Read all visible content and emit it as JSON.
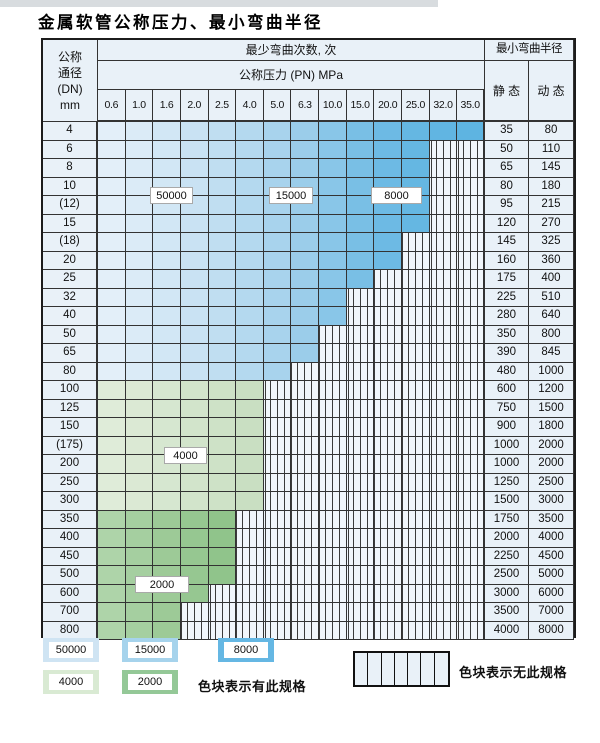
{
  "title": "金属软管公称压力、最小弯曲半径",
  "header": {
    "dn_lines": [
      "公称",
      "通径",
      "(DN)",
      "mm"
    ],
    "min_bend_cycles": "最少弯曲次数, 次",
    "nominal_pressure": "公称压力 (PN) MPa",
    "min_bend_radius": "最小弯曲半径",
    "static_label": "静 态",
    "dynamic_label": "动 态",
    "pressures": [
      "0.6",
      "1.0",
      "1.6",
      "2.0",
      "2.5",
      "4.0",
      "5.0",
      "6.3",
      "10.0",
      "15.0",
      "20.0",
      "25.0",
      "32.0",
      "35.0"
    ]
  },
  "cycle_labels": {
    "c50000": "50000",
    "c15000": "15000",
    "c8000": "8000",
    "c4000": "4000",
    "c2000": "2000"
  },
  "rows": [
    {
      "dn": "4",
      "spec": "blue",
      "colored": 14,
      "static": "35",
      "dynamic": "80"
    },
    {
      "dn": "6",
      "spec": "blue",
      "colored": 12,
      "static": "50",
      "dynamic": "110"
    },
    {
      "dn": "8",
      "spec": "blue",
      "colored": 12,
      "static": "65",
      "dynamic": "145"
    },
    {
      "dn": "10",
      "spec": "blue",
      "colored": 12,
      "static": "80",
      "dynamic": "180"
    },
    {
      "dn": "(12)",
      "spec": "blue",
      "colored": 12,
      "static": "95",
      "dynamic": "215"
    },
    {
      "dn": "15",
      "spec": "blue",
      "colored": 12,
      "static": "120",
      "dynamic": "270"
    },
    {
      "dn": "(18)",
      "spec": "blue",
      "colored": 11,
      "static": "145",
      "dynamic": "325"
    },
    {
      "dn": "20",
      "spec": "blue",
      "colored": 11,
      "static": "160",
      "dynamic": "360"
    },
    {
      "dn": "25",
      "spec": "blue",
      "colored": 10,
      "static": "175",
      "dynamic": "400"
    },
    {
      "dn": "32",
      "spec": "blue",
      "colored": 9,
      "static": "225",
      "dynamic": "510"
    },
    {
      "dn": "40",
      "spec": "blue",
      "colored": 9,
      "static": "280",
      "dynamic": "640"
    },
    {
      "dn": "50",
      "spec": "blue",
      "colored": 8,
      "static": "350",
      "dynamic": "800"
    },
    {
      "dn": "65",
      "spec": "blue",
      "colored": 8,
      "static": "390",
      "dynamic": "845"
    },
    {
      "dn": "80",
      "spec": "blue",
      "colored": 7,
      "static": "480",
      "dynamic": "1000"
    },
    {
      "dn": "100",
      "spec": "green-light",
      "colored": 6,
      "static": "600",
      "dynamic": "1200"
    },
    {
      "dn": "125",
      "spec": "green-light",
      "colored": 6,
      "static": "750",
      "dynamic": "1500"
    },
    {
      "dn": "150",
      "spec": "green-light",
      "colored": 6,
      "static": "900",
      "dynamic": "1800"
    },
    {
      "dn": "(175)",
      "spec": "green-light",
      "colored": 6,
      "static": "1000",
      "dynamic": "2000"
    },
    {
      "dn": "200",
      "spec": "green-light",
      "colored": 6,
      "static": "1000",
      "dynamic": "2000"
    },
    {
      "dn": "250",
      "spec": "green-light",
      "colored": 6,
      "static": "1250",
      "dynamic": "2500"
    },
    {
      "dn": "300",
      "spec": "green-light",
      "colored": 6,
      "static": "1500",
      "dynamic": "3000"
    },
    {
      "dn": "350",
      "spec": "green-dark",
      "colored": 5,
      "static": "1750",
      "dynamic": "3500"
    },
    {
      "dn": "400",
      "spec": "green-dark",
      "colored": 5,
      "static": "2000",
      "dynamic": "4000"
    },
    {
      "dn": "450",
      "spec": "green-dark",
      "colored": 5,
      "static": "2250",
      "dynamic": "4500"
    },
    {
      "dn": "500",
      "spec": "green-dark",
      "colored": 5,
      "static": "2500",
      "dynamic": "5000"
    },
    {
      "dn": "600",
      "spec": "green-dark",
      "colored": 4,
      "static": "3000",
      "dynamic": "6000"
    },
    {
      "dn": "700",
      "spec": "green-dark",
      "colored": 3,
      "static": "3500",
      "dynamic": "7000"
    },
    {
      "dn": "800",
      "spec": "green-dark",
      "colored": 3,
      "static": "4000",
      "dynamic": "8000"
    }
  ],
  "cycle_regions": {
    "blue_gradient_cycles": [
      "50000",
      "15000",
      "8000"
    ],
    "green_light_cycles": "4000",
    "green_dark_cycles": "2000"
  },
  "colors": {
    "blue_shades": [
      "#e3eff9",
      "#dbebf7",
      "#d2e7f5",
      "#c9e2f3",
      "#c0def1",
      "#b4d9ef",
      "#a8d3ed",
      "#9bcdea",
      "#89c6e8",
      "#79bfe5",
      "#6dbae4",
      "#65b7e2",
      "#61b5e2",
      "#5eb4e1"
    ],
    "green_light_shades": [
      "#dfecd9",
      "#dbe9d4",
      "#d6e7d0",
      "#d2e4cb",
      "#cee2c7",
      "#c9dfc2"
    ],
    "green_dark_shades": [
      "#aed4a9",
      "#a5cfa0",
      "#9dca97",
      "#96c791",
      "#90c48b"
    ],
    "legend_50000": "#cfe4f3",
    "legend_15000": "#a6d3ec",
    "legend_8000": "#65b7e3",
    "legend_4000": "#d9ead3",
    "legend_2000": "#94c897"
  },
  "legend": {
    "items": [
      {
        "key": "sw-50000",
        "text": "50000"
      },
      {
        "key": "sw-15000",
        "text": "15000"
      },
      {
        "key": "sw-8000",
        "text": "8000"
      },
      {
        "key": "sw-4000",
        "text": "4000"
      },
      {
        "key": "sw-2000",
        "text": "2000"
      }
    ],
    "has_spec_text": "色块表示有此规格",
    "no_spec_text": "色块表示无此规格"
  }
}
